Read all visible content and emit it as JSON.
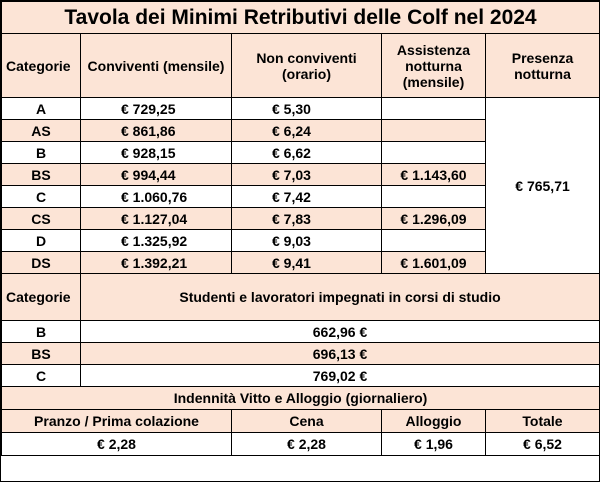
{
  "title": "Tavola dei Minimi Retributivi delle Colf nel 2024",
  "headers": {
    "categorie": "Categorie",
    "conviventi": "Conviventi (mensile)",
    "non_conviventi": "Non conviventi (orario)",
    "assistenza": "Assistenza notturna (mensile)",
    "presenza": "Presenza notturna"
  },
  "rows": [
    {
      "cat": "A",
      "conv": "€ 729,25",
      "non_conv": "€ 5,30",
      "assist": ""
    },
    {
      "cat": "AS",
      "conv": "€ 861,86",
      "non_conv": "€ 6,24",
      "assist": ""
    },
    {
      "cat": "B",
      "conv": "€ 928,15",
      "non_conv": "€ 6,62",
      "assist": ""
    },
    {
      "cat": "BS",
      "conv": "€ 994,44",
      "non_conv": "€ 7,03",
      "assist": "€ 1.143,60"
    },
    {
      "cat": "C",
      "conv": "€ 1.060,76",
      "non_conv": "€ 7,42",
      "assist": ""
    },
    {
      "cat": "CS",
      "conv": "€ 1.127,04",
      "non_conv": "€ 7,83",
      "assist": "€ 1.296,09"
    },
    {
      "cat": "D",
      "conv": "€ 1.325,92",
      "non_conv": "€ 9,03",
      "assist": ""
    },
    {
      "cat": "DS",
      "conv": "€ 1.392,21",
      "non_conv": "€ 9,41",
      "assist": "€ 1.601,09"
    }
  ],
  "presenza_value": "€ 765,71",
  "students": {
    "header_cat": "Categorie",
    "header_title": "Studenti e lavoratori impegnati in corsi di studio",
    "rows": [
      {
        "cat": "B",
        "value": "662,96 €"
      },
      {
        "cat": "BS",
        "value": "696,13 €"
      },
      {
        "cat": "C",
        "value": "769,02 €"
      }
    ]
  },
  "indennita": {
    "title": "Indennità Vitto e Alloggio (giornaliero)",
    "labels": [
      "Pranzo / Prima colazione",
      "Cena",
      "Alloggio",
      "Totale"
    ],
    "values": [
      "€ 2,28",
      "€ 2,28",
      "€ 1,96",
      "€ 6,52"
    ]
  },
  "colors": {
    "header_fill": "#fce4d6",
    "border": "#000000"
  }
}
